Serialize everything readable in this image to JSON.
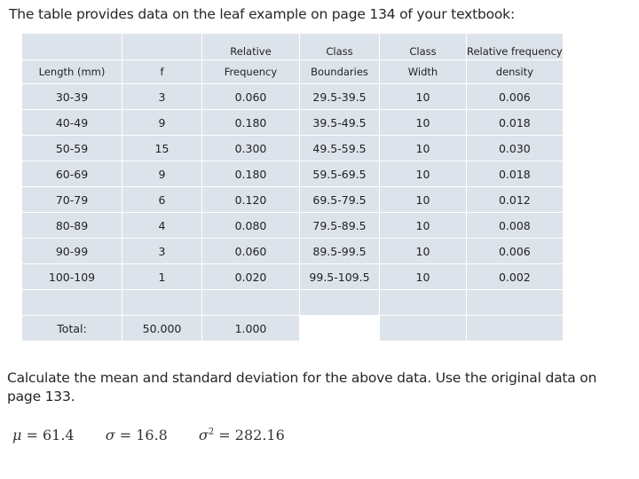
{
  "intro": "The table provides data on the leaf example on page 134 of your textbook:",
  "table": {
    "header1": [
      "",
      "",
      "Relative",
      "Class",
      "Class",
      "Relative frequency"
    ],
    "header2": [
      "Length (mm)",
      "f",
      "Frequency",
      "Boundaries",
      "Width",
      "density"
    ],
    "rows": [
      [
        "30-39",
        "3",
        "0.060",
        "29.5-39.5",
        "10",
        "0.006"
      ],
      [
        "40-49",
        "9",
        "0.180",
        "39.5-49.5",
        "10",
        "0.018"
      ],
      [
        "50-59",
        "15",
        "0.300",
        "49.5-59.5",
        "10",
        "0.030"
      ],
      [
        "60-69",
        "9",
        "0.180",
        "59.5-69.5",
        "10",
        "0.018"
      ],
      [
        "70-79",
        "6",
        "0.120",
        "69.5-79.5",
        "10",
        "0.012"
      ],
      [
        "80-89",
        "4",
        "0.080",
        "79.5-89.5",
        "10",
        "0.008"
      ],
      [
        "90-99",
        "3",
        "0.060",
        "89.5-99.5",
        "10",
        "0.006"
      ],
      [
        "100-109",
        "1",
        "0.020",
        "99.5-109.5",
        "10",
        "0.002"
      ]
    ],
    "total": {
      "label": "Total:",
      "f": "50.000",
      "rel_freq": "1.000"
    }
  },
  "question": "Calculate the mean and standard deviation for the above data. Use the original data on page 133.",
  "answers": {
    "mean": {
      "symbol": "μ",
      "value": "61.4"
    },
    "sd": {
      "symbol": "σ",
      "value": "16.8"
    },
    "variance": {
      "symbol": "σ",
      "exponent": "2",
      "value": "282.16"
    }
  },
  "colors": {
    "cell_fill": "#dde3eb",
    "text": "#262626"
  }
}
